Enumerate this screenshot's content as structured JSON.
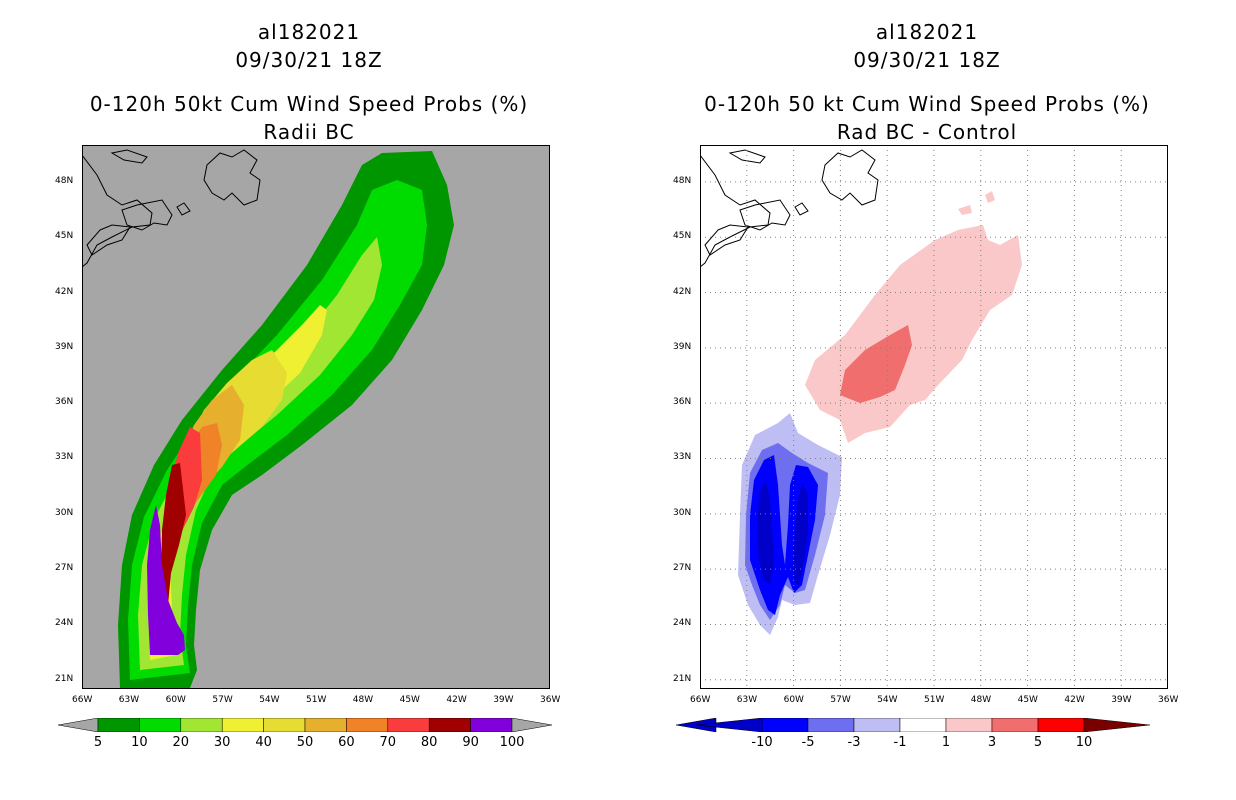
{
  "left": {
    "storm_id": "al182021",
    "datetime": "09/30/21 18Z",
    "title": "0-120h 50kt Cum Wind Speed Probs (%)",
    "subtitle": "Radii BC",
    "background_color": "#a6a6a6",
    "colorbar": {
      "colors": [
        "#009600",
        "#00dc00",
        "#a0e632",
        "#f0f032",
        "#e6dc32",
        "#e6af2d",
        "#f08228",
        "#fa3c3c",
        "#a00000",
        "#8200dc"
      ],
      "labels": [
        "5",
        "10",
        "20",
        "30",
        "40",
        "50",
        "60",
        "70",
        "80",
        "90",
        "100"
      ]
    }
  },
  "right": {
    "storm_id": "al182021",
    "datetime": "09/30/21 18Z",
    "title": "0-120h 50 kt Cum Wind Speed Probs (%)",
    "subtitle": "Rad BC - Control",
    "background_color": "#ffffff",
    "colorbar": {
      "colors": [
        "#0000c8",
        "#0000ff",
        "#6e6ef0",
        "#bebef5",
        "#ffffff",
        "#fac8c8",
        "#f06e6e",
        "#ff0000",
        "#7a0000"
      ],
      "labels": [
        "-10",
        "-5",
        "-3",
        "-1",
        "1",
        "3",
        "5",
        "10"
      ]
    }
  },
  "axes": {
    "lon_labels": [
      "66W",
      "63W",
      "60W",
      "57W",
      "54W",
      "51W",
      "48W",
      "45W",
      "42W",
      "39W",
      "36W"
    ],
    "lat_labels": [
      "48N",
      "45N",
      "42N",
      "39N",
      "36N",
      "33N",
      "30N",
      "27N",
      "24N",
      "21N"
    ],
    "lon_range": [
      -66,
      -36
    ],
    "lat_range": [
      20.5,
      50
    ]
  },
  "colors": {
    "coast": "#000000",
    "grid": "#808080"
  }
}
